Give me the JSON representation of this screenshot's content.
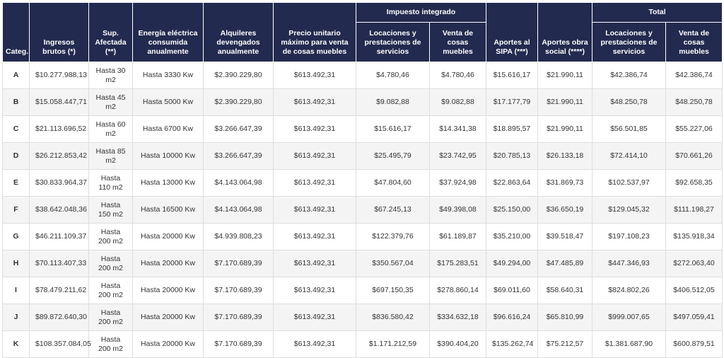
{
  "table": {
    "columns": [
      "Categ.",
      "Ingresos brutos (*)",
      "Sup. Afectada (**)",
      "Energía eléctrica consumida anualmente",
      "Alquileres devengados anualmente",
      "Precio unitario máximo para venta de cosas muebles",
      {
        "label": "Impuesto integrado",
        "sub": [
          "Locaciones y prestaciones de servicios",
          "Venta de cosas muebles"
        ]
      },
      "Aportes al SIPA (***)",
      "Aportes obra social (****)",
      {
        "label": "Total",
        "sub": [
          "Locaciones y prestaciones de servicios",
          "Venta de cosas muebles"
        ]
      }
    ],
    "rows": [
      [
        "A",
        "$10.277.988,13",
        "Hasta 30 m2",
        "Hasta 3330 Kw",
        "$2.390.229,80",
        "$613.492,31",
        "$4.780,46",
        "$4.780,46",
        "$15.616,17",
        "$21.990,11",
        "$42.386,74",
        "$42.386,74"
      ],
      [
        "B",
        "$15.058.447,71",
        "Hasta 45 m2",
        "Hasta 5000 Kw",
        "$2.390.229,80",
        "$613.492,31",
        "$9.082,88",
        "$9.082,88",
        "$17.177,79",
        "$21.990,11",
        "$48.250,78",
        "$48.250,78"
      ],
      [
        "C",
        "$21.113.696,52",
        "Hasta 60 m2",
        "Hasta 6700 Kw",
        "$3.266.647,39",
        "$613.492,31",
        "$15.616,17",
        "$14.341,38",
        "$18.895,57",
        "$21.990,11",
        "$56.501,85",
        "$55.227,06"
      ],
      [
        "D",
        "$26.212.853,42",
        "Hasta 85 m2",
        "Hasta 10000 Kw",
        "$3.266.647,39",
        "$613.492,31",
        "$25.495,79",
        "$23.742,95",
        "$20.785,13",
        "$26.133,18",
        "$72.414,10",
        "$70.661,26"
      ],
      [
        "E",
        "$30.833.964,37",
        "Hasta 110 m2",
        "Hasta 13000 Kw",
        "$4.143.064,98",
        "$613.492,31",
        "$47.804,60",
        "$37.924,98",
        "$22.863,64",
        "$31.869,73",
        "$102.537,97",
        "$92.658,35"
      ],
      [
        "F",
        "$38.642.048,36",
        "Hasta 150 m2",
        "Hasta 16500 Kw",
        "$4.143.064,98",
        "$613.492,31",
        "$67.245,13",
        "$49.398,08",
        "$25.150,00",
        "$36.650,19",
        "$129.045,32",
        "$111.198,27"
      ],
      [
        "G",
        "$46.211.109,37",
        "Hasta 200 m2",
        "Hasta 20000 Kw",
        "$4.939.808,23",
        "$613.492,31",
        "$122.379,76",
        "$61.189,87",
        "$35.210,00",
        "$39.518,47",
        "$197.108,23",
        "$135.918,34"
      ],
      [
        "H",
        "$70.113.407,33",
        "Hasta 200 m2",
        "Hasta 20000 Kw",
        "$7.170.689,39",
        "$613.492,31",
        "$350.567,04",
        "$175.283,51",
        "$49.294,00",
        "$47.485,89",
        "$447.346,93",
        "$272.063,40"
      ],
      [
        "I",
        "$78.479.211,62",
        "Hasta 200 m2",
        "Hasta 20000 Kw",
        "$7.170.689,39",
        "$613.492,31",
        "$697.150,35",
        "$278.860,14",
        "$69.011,60",
        "$58.640,31",
        "$824.802,26",
        "$406.512,05"
      ],
      [
        "J",
        "$89.872.640,30",
        "Hasta 200 m2",
        "Hasta 20000 Kw",
        "$7.170.689,39",
        "$613.492,31",
        "$836.580,42",
        "$334.632,18",
        "$96.616,24",
        "$65.810,99",
        "$999.007,65",
        "$497.059,41"
      ],
      [
        "K",
        "$108.357.084,05",
        "Hasta 200 m2",
        "Hasta 20000 Kw",
        "$7.170.689,39",
        "$613.492,31",
        "$1.171.212,59",
        "$390.404,20",
        "$135.262,74",
        "$75.212,57",
        "$1.381.687,90",
        "$600.879,51"
      ]
    ]
  }
}
